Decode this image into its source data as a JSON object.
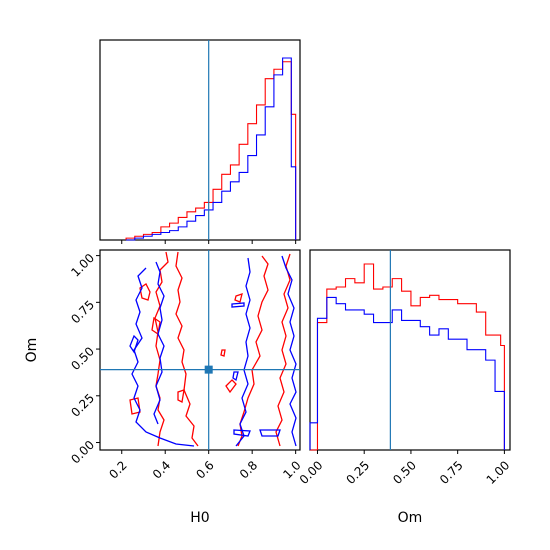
{
  "chart_data": {
    "type": "corner",
    "parameters": [
      "H0",
      "Om"
    ],
    "truth": {
      "H0": 0.6,
      "Om": 0.39
    },
    "colors": {
      "series_a": "#ff0000",
      "series_b": "#0000ff",
      "truth": "#1f77b4"
    },
    "axes": {
      "H0": {
        "label": "H0",
        "range": [
          0.1,
          1.02
        ],
        "ticks": [
          "0.2",
          "0.4",
          "0.6",
          "0.8",
          "1.0"
        ],
        "tick_values": [
          0.2,
          0.4,
          0.6,
          0.8,
          1.0
        ]
      },
      "Om": {
        "label": "Om",
        "range": [
          -0.04,
          1.03
        ],
        "ticks": [
          "0.00",
          "0.25",
          "0.50",
          "0.75",
          "1.00"
        ],
        "tick_values": [
          0.0,
          0.25,
          0.5,
          0.75,
          1.0
        ]
      }
    },
    "hist_H0": {
      "bin_edges": [
        0.22,
        0.26,
        0.3,
        0.34,
        0.38,
        0.42,
        0.46,
        0.5,
        0.54,
        0.58,
        0.62,
        0.66,
        0.7,
        0.74,
        0.78,
        0.82,
        0.86,
        0.9,
        0.94,
        0.98,
        1.0
      ],
      "series": [
        {
          "color": "red",
          "counts": [
            1,
            2,
            3,
            4,
            7,
            9,
            12,
            15,
            17,
            20,
            27,
            35,
            40,
            51,
            62,
            72,
            86,
            91,
            95,
            67
          ]
        },
        {
          "color": "blue",
          "counts": [
            0,
            1,
            2,
            3,
            4,
            5,
            7,
            10,
            13,
            16,
            20,
            26,
            31,
            36,
            45,
            56,
            71,
            88,
            97,
            39
          ]
        }
      ]
    },
    "hist_Om": {
      "bin_edges": [
        -0.04,
        0.0,
        0.05,
        0.1,
        0.15,
        0.2,
        0.25,
        0.3,
        0.35,
        0.4,
        0.45,
        0.5,
        0.55,
        0.6,
        0.65,
        0.7,
        0.75,
        0.8,
        0.85,
        0.9,
        0.95,
        0.98,
        1.0
      ],
      "series": [
        {
          "color": "red",
          "counts": [
            0,
            61,
            77,
            78,
            82,
            80,
            89,
            77,
            78,
            82,
            76,
            69,
            73,
            74,
            72,
            72,
            70,
            70,
            66,
            55,
            55,
            50
          ]
        },
        {
          "color": "blue",
          "counts": [
            13,
            63,
            73,
            70,
            67,
            67,
            65,
            61,
            61,
            67,
            62,
            62,
            59,
            55,
            58,
            53,
            53,
            48,
            48,
            43,
            28,
            28
          ]
        }
      ]
    }
  }
}
